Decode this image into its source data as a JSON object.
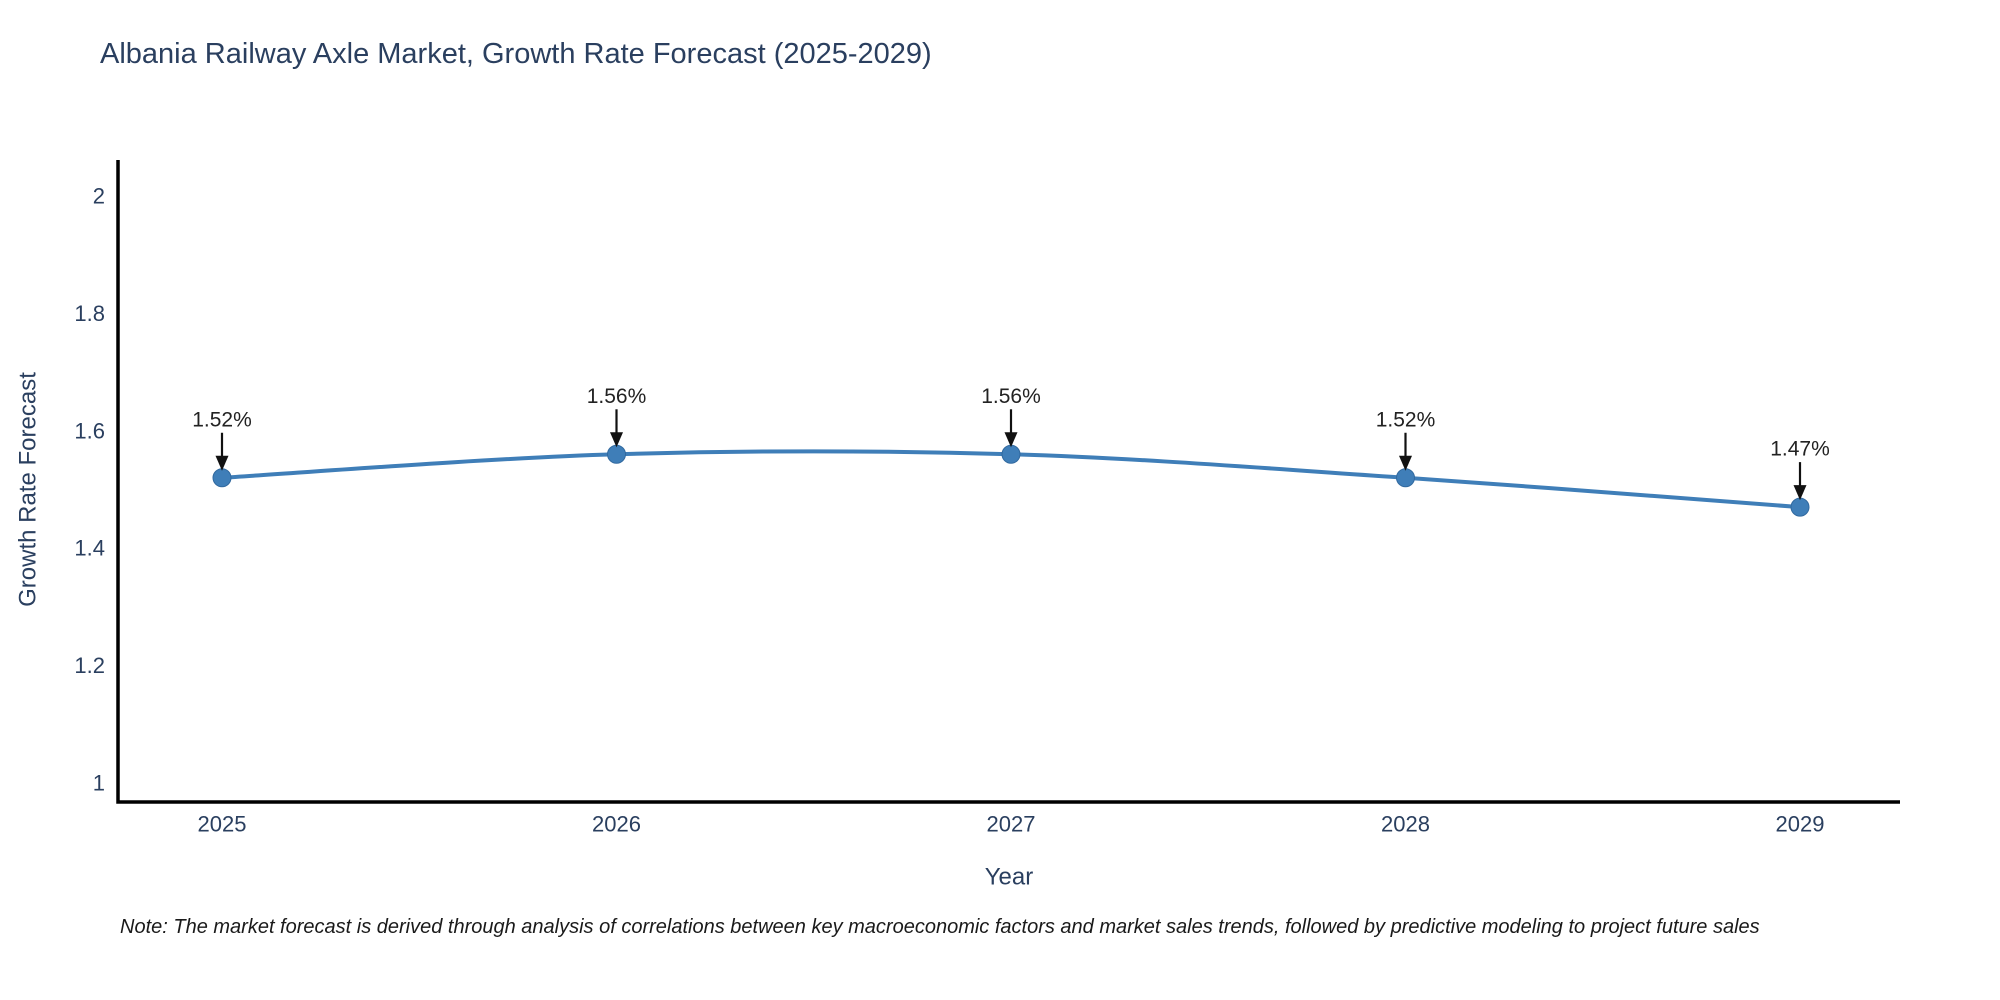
{
  "title": "Albania Railway Axle Market, Growth Rate Forecast (2025-2029)",
  "note": "Note: The market forecast is derived through analysis of correlations between key macroeconomic factors and market sales trends, followed by predictive modeling to project future sales",
  "chart_data": {
    "type": "line",
    "x": [
      2025,
      2026,
      2027,
      2028,
      2029
    ],
    "values": [
      1.52,
      1.56,
      1.56,
      1.52,
      1.47
    ],
    "point_labels": [
      "1.52%",
      "1.56%",
      "1.56%",
      "1.52%",
      "1.47%"
    ],
    "title": "Albania Railway Axle Market, Growth Rate Forecast (2025-2029)",
    "xlabel": "Year",
    "ylabel": "Growth Rate Forecast",
    "ylim": [
      1,
      2
    ],
    "yticks": [
      2,
      1.8,
      1.6,
      1.4,
      1.2,
      1
    ],
    "xticks": [
      "2025",
      "2026",
      "2027",
      "2028",
      "2029"
    ],
    "grid": false,
    "legend": "none",
    "annotations_have_arrows": true,
    "colors": {
      "line": "#3f7eb8",
      "marker": "#3f7eb8",
      "marker_edge": "#31699f",
      "axis": "#000000",
      "axis_text": "#2a3f5f",
      "annotation_text": "#222222",
      "arrow": "#111111"
    }
  }
}
